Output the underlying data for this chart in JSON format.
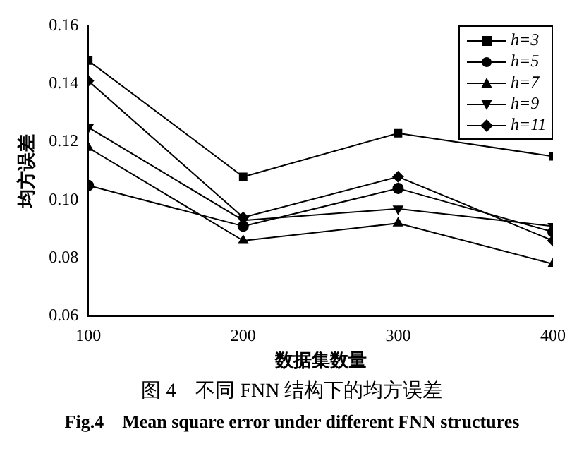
{
  "chart_data": {
    "type": "line",
    "title": "图 4　不同 FNN 结构下的均方误差",
    "subtitle": "Fig.4　Mean square error under different FNN structures",
    "xlabel": "数据集数量",
    "ylabel": "均方误差",
    "x": [
      100,
      200,
      300,
      400
    ],
    "xlim": [
      100,
      400
    ],
    "xticks": [
      100,
      200,
      300,
      400
    ],
    "ylim": [
      0.06,
      0.16
    ],
    "yticks": [
      0.06,
      0.08,
      {
        "value": 0.1,
        "label": "0.10"
      },
      0.12,
      0.14,
      0.16
    ],
    "series": [
      {
        "name": "h=3",
        "color": "#000000",
        "marker": "square",
        "values": [
          0.148,
          0.108,
          0.123,
          0.115
        ]
      },
      {
        "name": "h=5",
        "color": "#000000",
        "marker": "circle",
        "values": [
          0.105,
          0.091,
          0.104,
          0.089
        ]
      },
      {
        "name": "h=7",
        "color": "#000000",
        "marker": "triangle",
        "values": [
          0.118,
          0.086,
          0.092,
          0.078
        ]
      },
      {
        "name": "h=9",
        "color": "#000000",
        "marker": "triangle-down",
        "values": [
          0.125,
          0.093,
          0.097,
          0.091
        ]
      },
      {
        "name": "h=11",
        "color": "#000000",
        "marker": "diamond",
        "values": [
          0.141,
          0.094,
          0.108,
          0.086
        ]
      }
    ],
    "legend": "top right",
    "grid": false,
    "line_style": "solid"
  }
}
